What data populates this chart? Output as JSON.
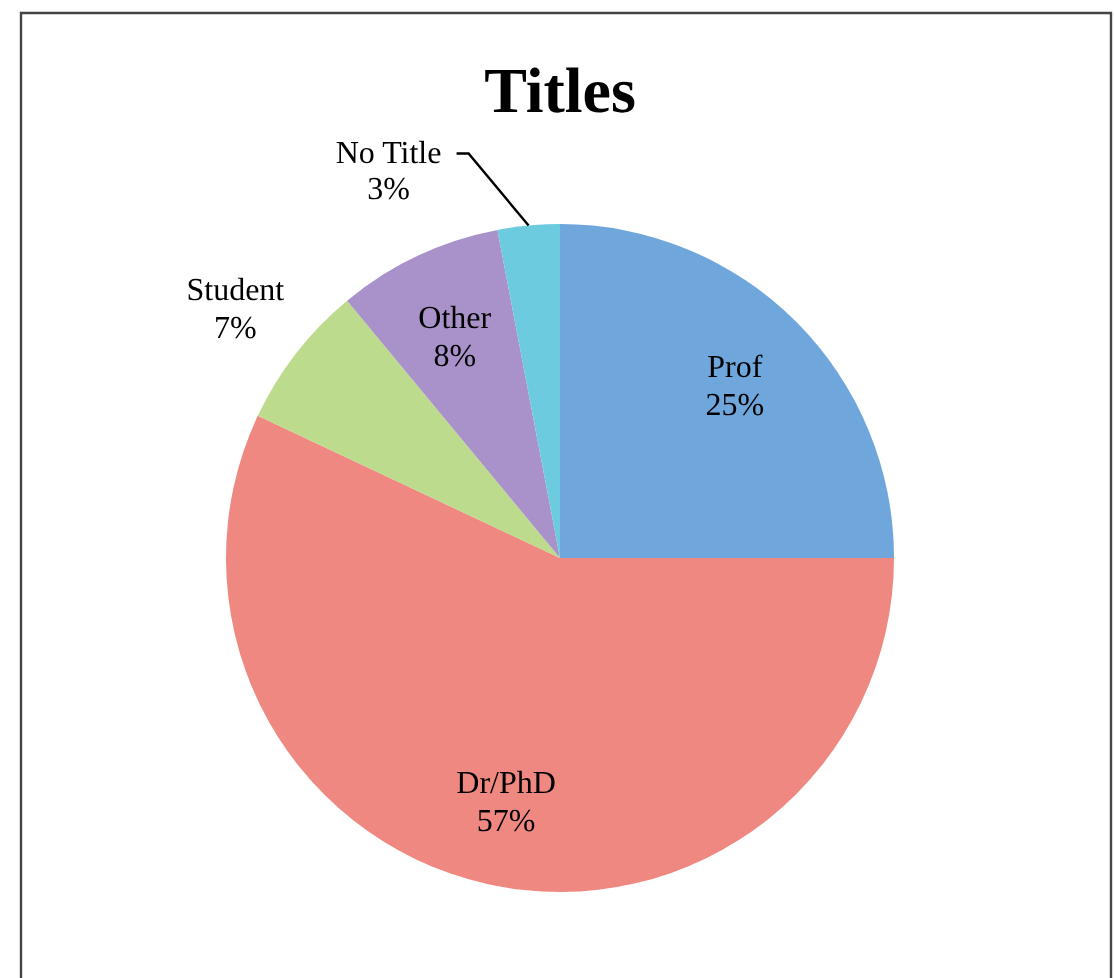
{
  "chart_data": {
    "type": "pie",
    "title": "Titles",
    "categories": [
      "Prof",
      "Dr/PhD",
      "Student",
      "Other",
      "No Title"
    ],
    "values": [
      25,
      57,
      7,
      8,
      3
    ],
    "value_labels": [
      "25%",
      "57%",
      "7%",
      "8%",
      "3%"
    ],
    "colors": [
      "#6fa6dc",
      "#ef8880",
      "#bddb8c",
      "#a991c9",
      "#6dcbe0"
    ]
  }
}
